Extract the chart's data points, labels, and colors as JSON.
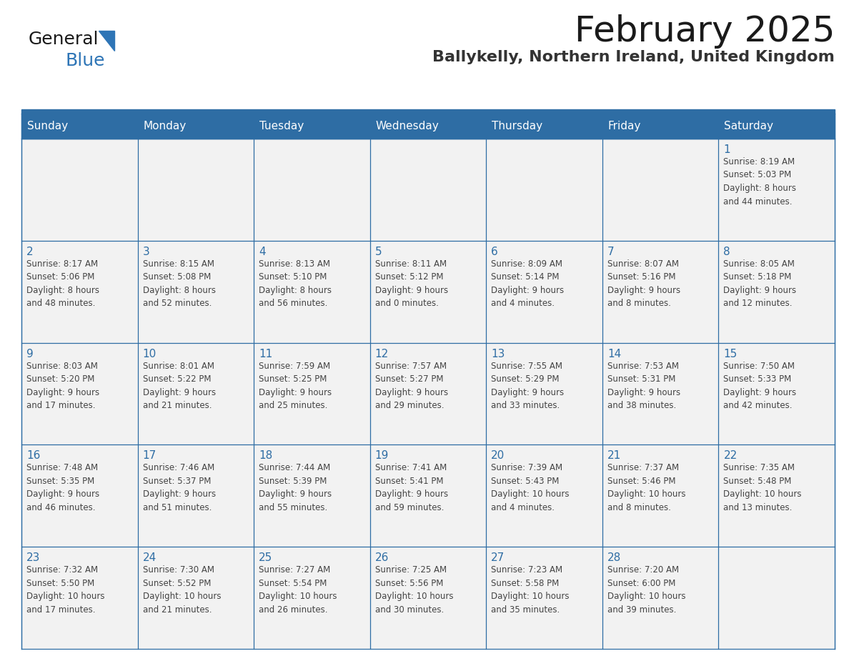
{
  "title": "February 2025",
  "subtitle": "Ballykelly, Northern Ireland, United Kingdom",
  "header_bg": "#2E6DA4",
  "header_text_color": "#FFFFFF",
  "day_names": [
    "Sunday",
    "Monday",
    "Tuesday",
    "Wednesday",
    "Thursday",
    "Friday",
    "Saturday"
  ],
  "cell_bg": "#F0F0F0",
  "border_color": "#2E6DA4",
  "text_color": "#444444",
  "number_color": "#2E6DA4",
  "weeks": [
    [
      {
        "day": null,
        "info": ""
      },
      {
        "day": null,
        "info": ""
      },
      {
        "day": null,
        "info": ""
      },
      {
        "day": null,
        "info": ""
      },
      {
        "day": null,
        "info": ""
      },
      {
        "day": null,
        "info": ""
      },
      {
        "day": 1,
        "info": "Sunrise: 8:19 AM\nSunset: 5:03 PM\nDaylight: 8 hours\nand 44 minutes."
      }
    ],
    [
      {
        "day": 2,
        "info": "Sunrise: 8:17 AM\nSunset: 5:06 PM\nDaylight: 8 hours\nand 48 minutes."
      },
      {
        "day": 3,
        "info": "Sunrise: 8:15 AM\nSunset: 5:08 PM\nDaylight: 8 hours\nand 52 minutes."
      },
      {
        "day": 4,
        "info": "Sunrise: 8:13 AM\nSunset: 5:10 PM\nDaylight: 8 hours\nand 56 minutes."
      },
      {
        "day": 5,
        "info": "Sunrise: 8:11 AM\nSunset: 5:12 PM\nDaylight: 9 hours\nand 0 minutes."
      },
      {
        "day": 6,
        "info": "Sunrise: 8:09 AM\nSunset: 5:14 PM\nDaylight: 9 hours\nand 4 minutes."
      },
      {
        "day": 7,
        "info": "Sunrise: 8:07 AM\nSunset: 5:16 PM\nDaylight: 9 hours\nand 8 minutes."
      },
      {
        "day": 8,
        "info": "Sunrise: 8:05 AM\nSunset: 5:18 PM\nDaylight: 9 hours\nand 12 minutes."
      }
    ],
    [
      {
        "day": 9,
        "info": "Sunrise: 8:03 AM\nSunset: 5:20 PM\nDaylight: 9 hours\nand 17 minutes."
      },
      {
        "day": 10,
        "info": "Sunrise: 8:01 AM\nSunset: 5:22 PM\nDaylight: 9 hours\nand 21 minutes."
      },
      {
        "day": 11,
        "info": "Sunrise: 7:59 AM\nSunset: 5:25 PM\nDaylight: 9 hours\nand 25 minutes."
      },
      {
        "day": 12,
        "info": "Sunrise: 7:57 AM\nSunset: 5:27 PM\nDaylight: 9 hours\nand 29 minutes."
      },
      {
        "day": 13,
        "info": "Sunrise: 7:55 AM\nSunset: 5:29 PM\nDaylight: 9 hours\nand 33 minutes."
      },
      {
        "day": 14,
        "info": "Sunrise: 7:53 AM\nSunset: 5:31 PM\nDaylight: 9 hours\nand 38 minutes."
      },
      {
        "day": 15,
        "info": "Sunrise: 7:50 AM\nSunset: 5:33 PM\nDaylight: 9 hours\nand 42 minutes."
      }
    ],
    [
      {
        "day": 16,
        "info": "Sunrise: 7:48 AM\nSunset: 5:35 PM\nDaylight: 9 hours\nand 46 minutes."
      },
      {
        "day": 17,
        "info": "Sunrise: 7:46 AM\nSunset: 5:37 PM\nDaylight: 9 hours\nand 51 minutes."
      },
      {
        "day": 18,
        "info": "Sunrise: 7:44 AM\nSunset: 5:39 PM\nDaylight: 9 hours\nand 55 minutes."
      },
      {
        "day": 19,
        "info": "Sunrise: 7:41 AM\nSunset: 5:41 PM\nDaylight: 9 hours\nand 59 minutes."
      },
      {
        "day": 20,
        "info": "Sunrise: 7:39 AM\nSunset: 5:43 PM\nDaylight: 10 hours\nand 4 minutes."
      },
      {
        "day": 21,
        "info": "Sunrise: 7:37 AM\nSunset: 5:46 PM\nDaylight: 10 hours\nand 8 minutes."
      },
      {
        "day": 22,
        "info": "Sunrise: 7:35 AM\nSunset: 5:48 PM\nDaylight: 10 hours\nand 13 minutes."
      }
    ],
    [
      {
        "day": 23,
        "info": "Sunrise: 7:32 AM\nSunset: 5:50 PM\nDaylight: 10 hours\nand 17 minutes."
      },
      {
        "day": 24,
        "info": "Sunrise: 7:30 AM\nSunset: 5:52 PM\nDaylight: 10 hours\nand 21 minutes."
      },
      {
        "day": 25,
        "info": "Sunrise: 7:27 AM\nSunset: 5:54 PM\nDaylight: 10 hours\nand 26 minutes."
      },
      {
        "day": 26,
        "info": "Sunrise: 7:25 AM\nSunset: 5:56 PM\nDaylight: 10 hours\nand 30 minutes."
      },
      {
        "day": 27,
        "info": "Sunrise: 7:23 AM\nSunset: 5:58 PM\nDaylight: 10 hours\nand 35 minutes."
      },
      {
        "day": 28,
        "info": "Sunrise: 7:20 AM\nSunset: 6:00 PM\nDaylight: 10 hours\nand 39 minutes."
      },
      {
        "day": null,
        "info": ""
      }
    ]
  ]
}
